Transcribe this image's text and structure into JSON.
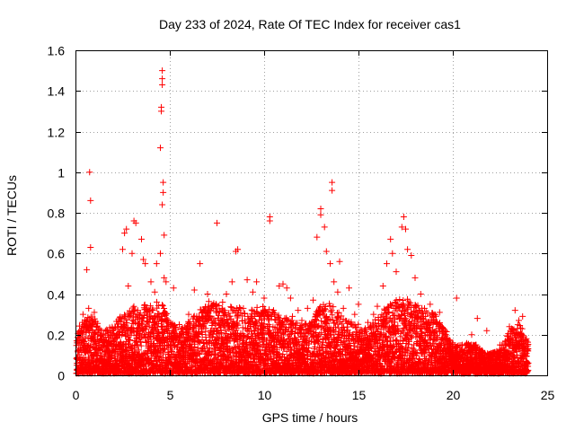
{
  "chart_data": {
    "type": "scatter",
    "title": "Day 233 of 2024, Rate Of TEC Index for receiver cas1",
    "xlabel": "GPS time / hours",
    "ylabel": "ROTI / TECUs",
    "xlim": [
      0,
      25
    ],
    "ylim": [
      0,
      1.6
    ],
    "x_ticks": [
      0,
      5,
      10,
      15,
      20,
      25
    ],
    "x_tick_labels": [
      "0",
      "5",
      "10",
      "15",
      "20",
      "25"
    ],
    "y_ticks": [
      0,
      0.2,
      0.4,
      0.6,
      0.8,
      1.0,
      1.2,
      1.4,
      1.6
    ],
    "y_tick_labels": [
      "0",
      "0.2",
      "0.4",
      "0.6",
      "0.8",
      "1",
      "1.2",
      "1.4",
      "1.6"
    ],
    "grid": true,
    "marker": "plus",
    "marker_color": "#ff0000",
    "series": [
      {
        "name": "ROTI",
        "points": [
          [
            0.2,
            0.05
          ],
          [
            0.3,
            0.22
          ],
          [
            0.4,
            0.3
          ],
          [
            0.5,
            0.12
          ],
          [
            0.6,
            0.52
          ],
          [
            0.7,
            0.33
          ],
          [
            0.75,
            1.0
          ],
          [
            0.8,
            0.86
          ],
          [
            0.8,
            0.63
          ],
          [
            0.9,
            0.25
          ],
          [
            1.0,
            0.31
          ],
          [
            1.1,
            0.08
          ],
          [
            1.4,
            0.18
          ],
          [
            1.8,
            0.1
          ],
          [
            2.0,
            0.2
          ],
          [
            2.3,
            0.15
          ],
          [
            2.5,
            0.62
          ],
          [
            2.6,
            0.7
          ],
          [
            2.7,
            0.72
          ],
          [
            2.8,
            0.44
          ],
          [
            3.0,
            0.6
          ],
          [
            3.1,
            0.76
          ],
          [
            3.2,
            0.75
          ],
          [
            3.3,
            0.32
          ],
          [
            3.5,
            0.67
          ],
          [
            3.6,
            0.57
          ],
          [
            3.7,
            0.55
          ],
          [
            3.8,
            0.3
          ],
          [
            4.0,
            0.46
          ],
          [
            4.2,
            0.41
          ],
          [
            4.3,
            0.55
          ],
          [
            4.5,
            0.6
          ],
          [
            4.5,
            1.12
          ],
          [
            4.55,
            1.3
          ],
          [
            4.55,
            1.32
          ],
          [
            4.6,
            1.43
          ],
          [
            4.6,
            1.46
          ],
          [
            4.6,
            1.5
          ],
          [
            4.65,
            0.95
          ],
          [
            4.65,
            0.9
          ],
          [
            4.6,
            0.84
          ],
          [
            4.7,
            0.69
          ],
          [
            4.7,
            0.48
          ],
          [
            4.8,
            0.46
          ],
          [
            5.0,
            0.18
          ],
          [
            5.2,
            0.43
          ],
          [
            5.5,
            0.25
          ],
          [
            6.0,
            0.3
          ],
          [
            6.3,
            0.42
          ],
          [
            6.6,
            0.55
          ],
          [
            7.0,
            0.4
          ],
          [
            7.3,
            0.33
          ],
          [
            7.5,
            0.75
          ],
          [
            7.8,
            0.36
          ],
          [
            8.0,
            0.4
          ],
          [
            8.3,
            0.46
          ],
          [
            8.5,
            0.61
          ],
          [
            8.6,
            0.62
          ],
          [
            8.9,
            0.33
          ],
          [
            9.1,
            0.47
          ],
          [
            9.4,
            0.41
          ],
          [
            9.6,
            0.46
          ],
          [
            10.0,
            0.38
          ],
          [
            10.2,
            0.3
          ],
          [
            10.3,
            0.78
          ],
          [
            10.3,
            0.76
          ],
          [
            10.5,
            0.32
          ],
          [
            10.8,
            0.44
          ],
          [
            11.0,
            0.45
          ],
          [
            11.2,
            0.43
          ],
          [
            11.4,
            0.38
          ],
          [
            11.5,
            0.29
          ],
          [
            11.8,
            0.32
          ],
          [
            12.0,
            0.27
          ],
          [
            12.3,
            0.33
          ],
          [
            12.6,
            0.37
          ],
          [
            12.8,
            0.68
          ],
          [
            13.0,
            0.82
          ],
          [
            13.0,
            0.79
          ],
          [
            13.2,
            0.73
          ],
          [
            13.3,
            0.61
          ],
          [
            13.5,
            0.55
          ],
          [
            13.6,
            0.95
          ],
          [
            13.6,
            0.91
          ],
          [
            13.7,
            0.46
          ],
          [
            13.9,
            0.41
          ],
          [
            14.0,
            0.56
          ],
          [
            14.2,
            0.33
          ],
          [
            14.5,
            0.43
          ],
          [
            14.8,
            0.3
          ],
          [
            15.0,
            0.35
          ],
          [
            15.5,
            0.26
          ],
          [
            15.8,
            0.3
          ],
          [
            16.0,
            0.34
          ],
          [
            16.3,
            0.44
          ],
          [
            16.5,
            0.55
          ],
          [
            16.7,
            0.67
          ],
          [
            16.8,
            0.6
          ],
          [
            17.0,
            0.51
          ],
          [
            17.3,
            0.73
          ],
          [
            17.4,
            0.78
          ],
          [
            17.5,
            0.72
          ],
          [
            17.6,
            0.62
          ],
          [
            17.8,
            0.59
          ],
          [
            18.0,
            0.48
          ],
          [
            18.3,
            0.4
          ],
          [
            18.5,
            0.33
          ],
          [
            18.8,
            0.35
          ],
          [
            19.0,
            0.3
          ],
          [
            19.3,
            0.31
          ],
          [
            19.6,
            0.22
          ],
          [
            20.0,
            0.16
          ],
          [
            20.2,
            0.38
          ],
          [
            20.5,
            0.15
          ],
          [
            21.0,
            0.2
          ],
          [
            21.3,
            0.28
          ],
          [
            21.5,
            0.12
          ],
          [
            21.8,
            0.22
          ],
          [
            22.0,
            0.1
          ],
          [
            22.5,
            0.15
          ],
          [
            23.0,
            0.24
          ],
          [
            23.3,
            0.32
          ],
          [
            23.5,
            0.27
          ],
          [
            23.7,
            0.29
          ],
          [
            23.9,
            0.18
          ],
          [
            24.0,
            0.06
          ]
        ],
        "dense_band": {
          "note": "Dense cloud of samples filling the range 0 to ~0.35 TECUs across 0-24 h",
          "x_range": [
            0.05,
            24.0
          ],
          "sample_interval_hours": 0.008,
          "upper_envelope": [
            [
              0.0,
              0.22
            ],
            [
              0.5,
              0.28
            ],
            [
              1.0,
              0.28
            ],
            [
              1.5,
              0.2
            ],
            [
              2.0,
              0.26
            ],
            [
              2.5,
              0.3
            ],
            [
              3.0,
              0.33
            ],
            [
              3.5,
              0.34
            ],
            [
              4.0,
              0.34
            ],
            [
              4.5,
              0.36
            ],
            [
              5.0,
              0.26
            ],
            [
              5.5,
              0.22
            ],
            [
              6.0,
              0.26
            ],
            [
              6.5,
              0.3
            ],
            [
              7.0,
              0.36
            ],
            [
              7.5,
              0.34
            ],
            [
              8.0,
              0.32
            ],
            [
              8.5,
              0.34
            ],
            [
              9.0,
              0.3
            ],
            [
              9.5,
              0.33
            ],
            [
              10.0,
              0.33
            ],
            [
              10.5,
              0.3
            ],
            [
              11.0,
              0.28
            ],
            [
              11.5,
              0.26
            ],
            [
              12.0,
              0.24
            ],
            [
              12.5,
              0.26
            ],
            [
              13.0,
              0.34
            ],
            [
              13.5,
              0.35
            ],
            [
              14.0,
              0.3
            ],
            [
              14.5,
              0.26
            ],
            [
              15.0,
              0.24
            ],
            [
              15.5,
              0.22
            ],
            [
              16.0,
              0.28
            ],
            [
              16.5,
              0.33
            ],
            [
              17.0,
              0.36
            ],
            [
              17.5,
              0.38
            ],
            [
              18.0,
              0.34
            ],
            [
              18.5,
              0.32
            ],
            [
              19.0,
              0.3
            ],
            [
              19.5,
              0.26
            ],
            [
              20.0,
              0.14
            ],
            [
              20.5,
              0.14
            ],
            [
              21.0,
              0.16
            ],
            [
              21.5,
              0.12
            ],
            [
              22.0,
              0.1
            ],
            [
              22.5,
              0.12
            ],
            [
              23.0,
              0.22
            ],
            [
              23.5,
              0.26
            ],
            [
              24.0,
              0.15
            ]
          ]
        }
      }
    ]
  }
}
